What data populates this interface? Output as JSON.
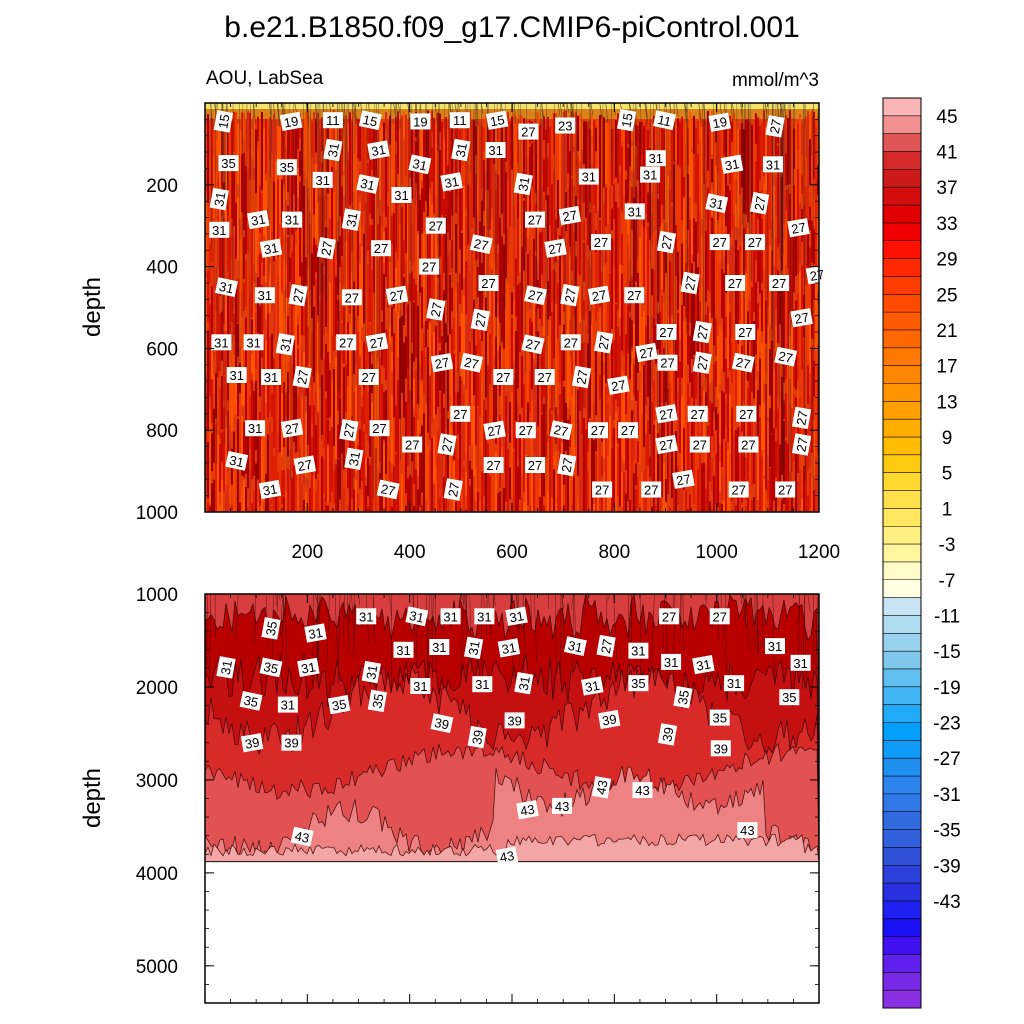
{
  "figure": {
    "title": "b.e21.B1850.f09_g17.CMIP6-piControl.001",
    "variable_region": "AOU, LabSea",
    "units": "mmol/m^3"
  },
  "chart_data": [
    {
      "type": "heatmap",
      "panel": "upper",
      "ylabel": "depth",
      "ylim": [
        1000,
        0
      ],
      "xlim": [
        0,
        1200
      ],
      "x_ticks": [
        "200",
        "400",
        "600",
        "800",
        "1000",
        "1200"
      ],
      "y_ticks": [
        "200",
        "400",
        "600",
        "800",
        "1000"
      ],
      "value_range": [
        11,
        35
      ],
      "contour_labels": [
        {
          "v": "15",
          "x": 36,
          "d": 45
        },
        {
          "v": "19",
          "x": 168,
          "d": 45
        },
        {
          "v": "11",
          "x": 250,
          "d": 42
        },
        {
          "v": "15",
          "x": 323,
          "d": 42
        },
        {
          "v": "19",
          "x": 421,
          "d": 45
        },
        {
          "v": "11",
          "x": 498,
          "d": 42
        },
        {
          "v": "15",
          "x": 571,
          "d": 42
        },
        {
          "v": "27",
          "x": 632,
          "d": 70
        },
        {
          "v": "23",
          "x": 704,
          "d": 55
        },
        {
          "v": "15",
          "x": 824,
          "d": 42
        },
        {
          "v": "11",
          "x": 898,
          "d": 42
        },
        {
          "v": "19",
          "x": 1006,
          "d": 47
        },
        {
          "v": "27",
          "x": 1114,
          "d": 57
        },
        {
          "v": "35",
          "x": 46,
          "d": 147
        },
        {
          "v": "35",
          "x": 160,
          "d": 157
        },
        {
          "v": "31",
          "x": 250,
          "d": 115
        },
        {
          "v": "31",
          "x": 339,
          "d": 115
        },
        {
          "v": "31",
          "x": 420,
          "d": 150
        },
        {
          "v": "31",
          "x": 500,
          "d": 115
        },
        {
          "v": "31",
          "x": 568,
          "d": 115
        },
        {
          "v": "31",
          "x": 881,
          "d": 135
        },
        {
          "v": "31",
          "x": 1030,
          "d": 150
        },
        {
          "v": "31",
          "x": 1110,
          "d": 150
        },
        {
          "v": "31",
          "x": 230,
          "d": 188
        },
        {
          "v": "31",
          "x": 318,
          "d": 198
        },
        {
          "v": "31",
          "x": 384,
          "d": 225
        },
        {
          "v": "31",
          "x": 482,
          "d": 193
        },
        {
          "v": "31",
          "x": 622,
          "d": 198
        },
        {
          "v": "31",
          "x": 750,
          "d": 180
        },
        {
          "v": "31",
          "x": 870,
          "d": 175
        },
        {
          "v": "31",
          "x": 28,
          "d": 235
        },
        {
          "v": "31",
          "x": 104,
          "d": 285
        },
        {
          "v": "31",
          "x": 170,
          "d": 285
        },
        {
          "v": "31",
          "x": 286,
          "d": 285
        },
        {
          "v": "27",
          "x": 451,
          "d": 300
        },
        {
          "v": "27",
          "x": 645,
          "d": 285
        },
        {
          "v": "27",
          "x": 713,
          "d": 275
        },
        {
          "v": "31",
          "x": 840,
          "d": 265
        },
        {
          "v": "31",
          "x": 1000,
          "d": 245
        },
        {
          "v": "27",
          "x": 1084,
          "d": 245
        },
        {
          "v": "31",
          "x": 28,
          "d": 310
        },
        {
          "v": "31",
          "x": 129,
          "d": 355
        },
        {
          "v": "27",
          "x": 237,
          "d": 355
        },
        {
          "v": "27",
          "x": 344,
          "d": 355
        },
        {
          "v": "27",
          "x": 438,
          "d": 400
        },
        {
          "v": "27",
          "x": 540,
          "d": 345
        },
        {
          "v": "27",
          "x": 685,
          "d": 355
        },
        {
          "v": "27",
          "x": 774,
          "d": 340
        },
        {
          "v": "27",
          "x": 902,
          "d": 340
        },
        {
          "v": "27",
          "x": 1006,
          "d": 340
        },
        {
          "v": "27",
          "x": 1075,
          "d": 340
        },
        {
          "v": "27",
          "x": 1160,
          "d": 305
        },
        {
          "v": "31",
          "x": 42,
          "d": 450
        },
        {
          "v": "31",
          "x": 117,
          "d": 470
        },
        {
          "v": "27",
          "x": 182,
          "d": 470
        },
        {
          "v": "27",
          "x": 287,
          "d": 475
        },
        {
          "v": "27",
          "x": 375,
          "d": 470
        },
        {
          "v": "27",
          "x": 451,
          "d": 505
        },
        {
          "v": "27",
          "x": 554,
          "d": 440
        },
        {
          "v": "27",
          "x": 646,
          "d": 470
        },
        {
          "v": "27",
          "x": 713,
          "d": 470
        },
        {
          "v": "27",
          "x": 770,
          "d": 470
        },
        {
          "v": "27",
          "x": 839,
          "d": 470
        },
        {
          "v": "27",
          "x": 948,
          "d": 440
        },
        {
          "v": "27",
          "x": 1036,
          "d": 440
        },
        {
          "v": "27",
          "x": 1122,
          "d": 440
        },
        {
          "v": "27",
          "x": 1196,
          "d": 420
        },
        {
          "v": "31",
          "x": 32,
          "d": 585
        },
        {
          "v": "31",
          "x": 95,
          "d": 585
        },
        {
          "v": "31",
          "x": 157,
          "d": 590
        },
        {
          "v": "27",
          "x": 276,
          "d": 585
        },
        {
          "v": "27",
          "x": 336,
          "d": 585
        },
        {
          "v": "27",
          "x": 538,
          "d": 530
        },
        {
          "v": "27",
          "x": 641,
          "d": 590
        },
        {
          "v": "27",
          "x": 715,
          "d": 585
        },
        {
          "v": "27",
          "x": 779,
          "d": 585
        },
        {
          "v": "27",
          "x": 863,
          "d": 610
        },
        {
          "v": "27",
          "x": 902,
          "d": 560
        },
        {
          "v": "27",
          "x": 972,
          "d": 560
        },
        {
          "v": "27",
          "x": 1056,
          "d": 560
        },
        {
          "v": "27",
          "x": 1135,
          "d": 620
        },
        {
          "v": "27",
          "x": 1166,
          "d": 525
        },
        {
          "v": "31",
          "x": 62,
          "d": 665
        },
        {
          "v": "31",
          "x": 129,
          "d": 670
        },
        {
          "v": "27",
          "x": 190,
          "d": 670
        },
        {
          "v": "27",
          "x": 320,
          "d": 670
        },
        {
          "v": "27",
          "x": 463,
          "d": 635
        },
        {
          "v": "27",
          "x": 521,
          "d": 635
        },
        {
          "v": "27",
          "x": 583,
          "d": 670
        },
        {
          "v": "27",
          "x": 664,
          "d": 670
        },
        {
          "v": "27",
          "x": 736,
          "d": 670
        },
        {
          "v": "27",
          "x": 808,
          "d": 690
        },
        {
          "v": "27",
          "x": 904,
          "d": 635
        },
        {
          "v": "27",
          "x": 972,
          "d": 635
        },
        {
          "v": "27",
          "x": 1052,
          "d": 635
        },
        {
          "v": "27",
          "x": 499,
          "d": 760
        },
        {
          "v": "27",
          "x": 902,
          "d": 760
        },
        {
          "v": "27",
          "x": 963,
          "d": 760
        },
        {
          "v": "27",
          "x": 1058,
          "d": 760
        },
        {
          "v": "27",
          "x": 1166,
          "d": 770
        },
        {
          "v": "31",
          "x": 98,
          "d": 795
        },
        {
          "v": "27",
          "x": 170,
          "d": 795
        },
        {
          "v": "27",
          "x": 281,
          "d": 800
        },
        {
          "v": "27",
          "x": 341,
          "d": 795
        },
        {
          "v": "27",
          "x": 405,
          "d": 835
        },
        {
          "v": "27",
          "x": 473,
          "d": 835
        },
        {
          "v": "27",
          "x": 566,
          "d": 800
        },
        {
          "v": "27",
          "x": 627,
          "d": 800
        },
        {
          "v": "27",
          "x": 696,
          "d": 800
        },
        {
          "v": "27",
          "x": 768,
          "d": 800
        },
        {
          "v": "27",
          "x": 827,
          "d": 800
        },
        {
          "v": "27",
          "x": 902,
          "d": 835
        },
        {
          "v": "27",
          "x": 967,
          "d": 835
        },
        {
          "v": "27",
          "x": 1062,
          "d": 835
        },
        {
          "v": "27",
          "x": 1166,
          "d": 835
        },
        {
          "v": "31",
          "x": 62,
          "d": 875
        },
        {
          "v": "27",
          "x": 195,
          "d": 885
        },
        {
          "v": "31",
          "x": 291,
          "d": 870
        },
        {
          "v": "27",
          "x": 564,
          "d": 885
        },
        {
          "v": "27",
          "x": 645,
          "d": 885
        },
        {
          "v": "27",
          "x": 707,
          "d": 885
        },
        {
          "v": "31",
          "x": 127,
          "d": 945
        },
        {
          "v": "27",
          "x": 358,
          "d": 945
        },
        {
          "v": "27",
          "x": 485,
          "d": 945
        },
        {
          "v": "27",
          "x": 776,
          "d": 945
        },
        {
          "v": "27",
          "x": 872,
          "d": 945
        },
        {
          "v": "27",
          "x": 935,
          "d": 920
        },
        {
          "v": "27",
          "x": 1043,
          "d": 945
        },
        {
          "v": "27",
          "x": 1134,
          "d": 945
        }
      ]
    },
    {
      "type": "heatmap",
      "panel": "lower",
      "ylabel": "depth",
      "ylim": [
        5400,
        1000
      ],
      "xlim": [
        0,
        1200
      ],
      "y_ticks": [
        "1000",
        "2000",
        "3000",
        "4000",
        "5000"
      ],
      "bottom_of_data": 3880,
      "value_range": [
        25,
        47
      ],
      "contour_labels": [
        {
          "v": "35",
          "x": 129,
          "d": 1370
        },
        {
          "v": "31",
          "x": 216,
          "d": 1420
        },
        {
          "v": "31",
          "x": 315,
          "d": 1240
        },
        {
          "v": "31",
          "x": 414,
          "d": 1240
        },
        {
          "v": "31",
          "x": 480,
          "d": 1240
        },
        {
          "v": "31",
          "x": 546,
          "d": 1240
        },
        {
          "v": "31",
          "x": 609,
          "d": 1240
        },
        {
          "v": "27",
          "x": 907,
          "d": 1240
        },
        {
          "v": "27",
          "x": 1006,
          "d": 1240
        },
        {
          "v": "31",
          "x": 41,
          "d": 1790
        },
        {
          "v": "35",
          "x": 129,
          "d": 1790
        },
        {
          "v": "31",
          "x": 202,
          "d": 1790
        },
        {
          "v": "31",
          "x": 325,
          "d": 1840
        },
        {
          "v": "31",
          "x": 388,
          "d": 1600
        },
        {
          "v": "31",
          "x": 458,
          "d": 1570
        },
        {
          "v": "31",
          "x": 525,
          "d": 1580
        },
        {
          "v": "31",
          "x": 594,
          "d": 1580
        },
        {
          "v": "31",
          "x": 724,
          "d": 1560
        },
        {
          "v": "27",
          "x": 784,
          "d": 1560
        },
        {
          "v": "31",
          "x": 847,
          "d": 1610
        },
        {
          "v": "31",
          "x": 911,
          "d": 1730
        },
        {
          "v": "31",
          "x": 974,
          "d": 1760
        },
        {
          "v": "31",
          "x": 1114,
          "d": 1560
        },
        {
          "v": "31",
          "x": 1164,
          "d": 1740
        },
        {
          "v": "35",
          "x": 90,
          "d": 2150
        },
        {
          "v": "31",
          "x": 162,
          "d": 2190
        },
        {
          "v": "35",
          "x": 262,
          "d": 2190
        },
        {
          "v": "35",
          "x": 337,
          "d": 2150
        },
        {
          "v": "31",
          "x": 421,
          "d": 1990
        },
        {
          "v": "31",
          "x": 542,
          "d": 1970
        },
        {
          "v": "31",
          "x": 623,
          "d": 1960
        },
        {
          "v": "31",
          "x": 757,
          "d": 1990
        },
        {
          "v": "35",
          "x": 847,
          "d": 1960
        },
        {
          "v": "35",
          "x": 934,
          "d": 2110
        },
        {
          "v": "31",
          "x": 1034,
          "d": 1960
        },
        {
          "v": "35",
          "x": 1142,
          "d": 2110
        },
        {
          "v": "39",
          "x": 92,
          "d": 2600
        },
        {
          "v": "39",
          "x": 169,
          "d": 2600
        },
        {
          "v": "39",
          "x": 463,
          "d": 2390
        },
        {
          "v": "39",
          "x": 532,
          "d": 2540
        },
        {
          "v": "39",
          "x": 605,
          "d": 2360
        },
        {
          "v": "39",
          "x": 790,
          "d": 2350
        },
        {
          "v": "39",
          "x": 904,
          "d": 2510
        },
        {
          "v": "35",
          "x": 1006,
          "d": 2330
        },
        {
          "v": "39",
          "x": 1008,
          "d": 2660
        },
        {
          "v": "43",
          "x": 190,
          "d": 3610
        },
        {
          "v": "43",
          "x": 630,
          "d": 3320
        },
        {
          "v": "43",
          "x": 698,
          "d": 3280
        },
        {
          "v": "43",
          "x": 775,
          "d": 3080
        },
        {
          "v": "43",
          "x": 855,
          "d": 3110
        },
        {
          "v": "43",
          "x": 1060,
          "d": 3540
        },
        {
          "v": "43",
          "x": 590,
          "d": 3820
        }
      ]
    }
  ],
  "colorbar": {
    "labels": [
      "45",
      "41",
      "37",
      "33",
      "29",
      "25",
      "21",
      "17",
      "13",
      "9",
      "5",
      "1",
      "-3",
      "-7",
      "-11",
      "-15",
      "-19",
      "-23",
      "-27",
      "-31",
      "-35",
      "-39",
      "-43"
    ],
    "colors": [
      "#fab6b6",
      "#f09090",
      "#e05555",
      "#d42a2a",
      "#cc1a1a",
      "#d40d0d",
      "#e00000",
      "#f00000",
      "#ff1000",
      "#ff2800",
      "#ff3c00",
      "#ff4a00",
      "#ff5a00",
      "#ff6800",
      "#ff7800",
      "#ff8600",
      "#ff9400",
      "#ffa000",
      "#ffae00",
      "#ffbc00",
      "#ffca10",
      "#ffd830",
      "#ffe04a",
      "#ffe860",
      "#ffee80",
      "#fff6a0",
      "#fffbc8",
      "#fffee0",
      "#c8e4f4",
      "#b0dcf2",
      "#98d2ef",
      "#7fc8ec",
      "#60bef0",
      "#40b4f4",
      "#20aaf8",
      "#00a0fc",
      "#109cf8",
      "#2090f0",
      "#2c84ec",
      "#3078e8",
      "#306ce0",
      "#3060dc",
      "#3050d8",
      "#2c40dc",
      "#2830e0",
      "#2020f0",
      "#1a10f4",
      "#4010f0",
      "#6020ec",
      "#7a28e8",
      "#8a30e4"
    ]
  }
}
